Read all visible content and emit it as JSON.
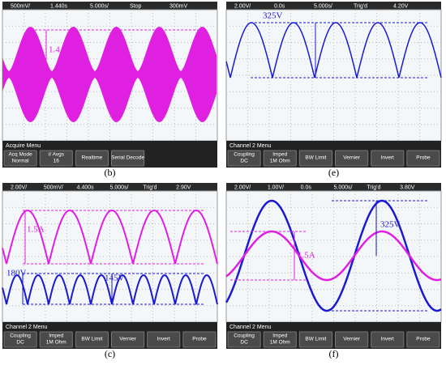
{
  "panels": [
    {
      "caption": "(b)",
      "status": [
        "500mV/",
        "1.440s",
        "5.000s/",
        "Stop",
        "300mV"
      ],
      "menu_title": "Acquire Menu",
      "buttons": [
        [
          "Acq Mode",
          "Normal"
        ],
        [
          "# Avgs",
          "16"
        ],
        [
          "Realtime"
        ],
        [
          "Serial Decode"
        ]
      ],
      "annotations": [
        "1.4A"
      ]
    },
    {
      "caption": "(e)",
      "status": [
        "2.00V/",
        "0.0s",
        "5.000s/",
        "Trig'd",
        "4.20V"
      ],
      "menu_title": "Channel 2  Menu",
      "buttons": [
        [
          "Coupling",
          "DC"
        ],
        [
          "Imped",
          "1M Ohm"
        ],
        [
          "BW Limit"
        ],
        [
          "Vernier"
        ],
        [
          "Invert"
        ],
        [
          "Probe"
        ]
      ],
      "annotations": [
        "325V"
      ]
    },
    {
      "caption": "(c)",
      "status": [
        "2.00V/",
        "500mV/",
        "4.400s",
        "5.000s/",
        "Trig'd",
        "2.90V"
      ],
      "menu_title": "Channel 2  Menu",
      "buttons": [
        [
          "Coupling",
          "DC"
        ],
        [
          "Imped",
          "1M Ohm"
        ],
        [
          "BW Limit"
        ],
        [
          "Vernier"
        ],
        [
          "Invert"
        ],
        [
          "Probe"
        ]
      ],
      "annotations": [
        "1.5A",
        "180V",
        "145V"
      ]
    },
    {
      "caption": "(f)",
      "status": [
        "2.00V/",
        "1.00V/",
        "0.0s",
        "5.000s/",
        "Trig'd",
        "3.80V"
      ],
      "menu_title": "Channel 2  Menu",
      "buttons": [
        [
          "Coupling",
          "DC"
        ],
        [
          "Imped",
          "1M Ohm"
        ],
        [
          "BW Limit"
        ],
        [
          "Vernier"
        ],
        [
          "Invert"
        ],
        [
          "Probe"
        ]
      ],
      "annotations": [
        "325V",
        "1.5A"
      ]
    }
  ]
}
